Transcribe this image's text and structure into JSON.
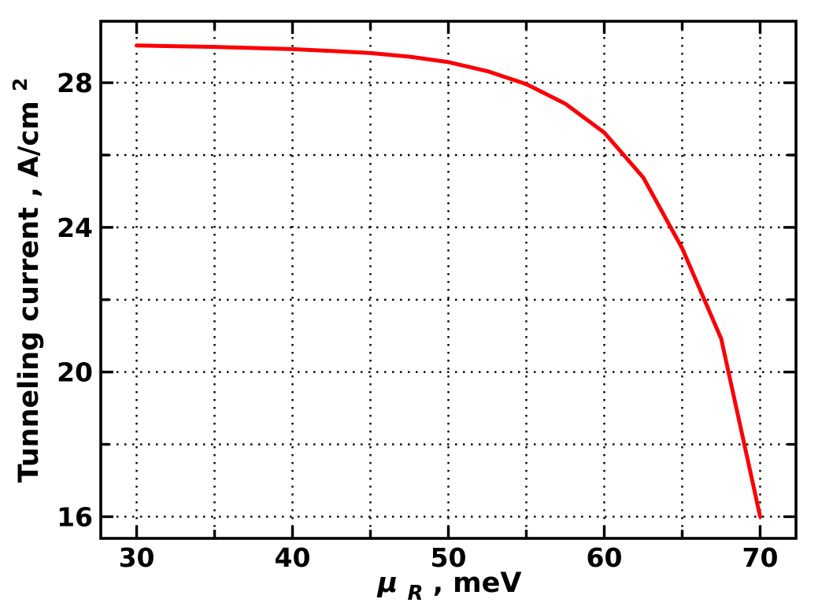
{
  "chart_data": {
    "type": "line",
    "title": "",
    "xlabel": "μR , meV",
    "ylabel": "Tunneling current , A/cm²",
    "xlabel_parts": {
      "symbol": "μ",
      "sub": "R",
      "rest": " , meV"
    },
    "ylabel_parts": {
      "main": "Tunneling current , A/cm",
      "sup": "2"
    },
    "xlim": [
      27.7,
      72.3
    ],
    "ylim": [
      15.4,
      29.7
    ],
    "grid": {
      "shown": true,
      "style": "dotted",
      "color": "#000000"
    },
    "legend": {
      "shown": false
    },
    "xticks": {
      "major": [
        30,
        40,
        50,
        60,
        70
      ],
      "major_labels": [
        "30",
        "40",
        "50",
        "60",
        "70"
      ],
      "minor": [
        35,
        45,
        55,
        65
      ]
    },
    "yticks": {
      "major": [
        16,
        20,
        24,
        28
      ],
      "major_labels": [
        "16",
        "20",
        "24",
        "28"
      ],
      "minor": [
        18,
        22,
        26
      ]
    },
    "series": [
      {
        "name": "tunneling current",
        "color": "#fb0006",
        "line_width": 5,
        "x": [
          30,
          32.5,
          35,
          37.5,
          40,
          42.5,
          45,
          47.5,
          50,
          52.5,
          55,
          57.5,
          60,
          62.5,
          65,
          67.5,
          70
        ],
        "y": [
          29.03,
          29.01,
          28.99,
          28.96,
          28.93,
          28.88,
          28.82,
          28.72,
          28.57,
          28.32,
          27.96,
          27.42,
          26.62,
          25.38,
          23.42,
          20.92,
          16.0
        ]
      }
    ]
  }
}
